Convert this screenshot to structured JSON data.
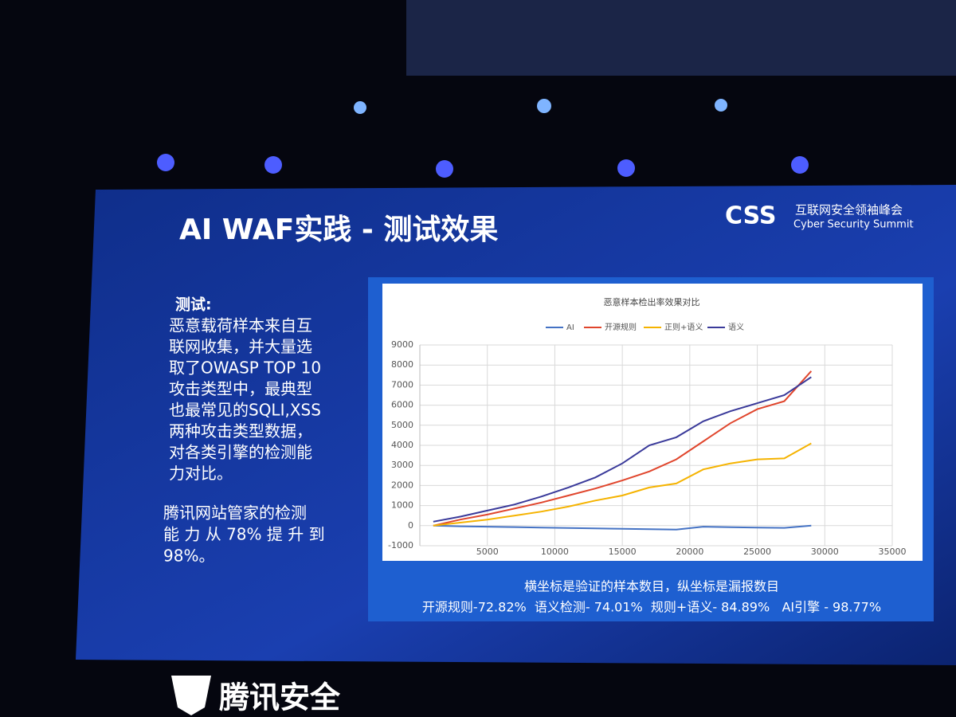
{
  "slide": {
    "title": "AI WAF实践 - 测试效果",
    "logo": "CSS",
    "summit_cn": "互联网安全领袖峰会",
    "summit_en": "Cyber Security Summit",
    "test_heading": "测试:",
    "test_lines": [
      "恶意载荷样本来自互",
      "联网收集，并大量选",
      "取了OWASP TOP 10",
      "攻击类型中，最典型",
      "也最常见的SQLI,XSS",
      "两种攻击类型数据，",
      "对各类引擎的检测能",
      "力对比。"
    ],
    "result_lines": [
      "腾讯网站管家的检测",
      "能 力 从 78% 提 升 到",
      "98%。"
    ],
    "caption": "横坐标是验证的样本数目，纵坐标是漏报数目",
    "rates": "开源规则-72.82%  语义检测- 74.01%  规则+语义- 84.89%   AI引擎 - 98.77%",
    "brand": "腾讯安全"
  },
  "chart_data": {
    "type": "line",
    "title": "恶意样本检出率效果对比",
    "x": [
      1000,
      3000,
      5000,
      7000,
      9000,
      11000,
      13000,
      15000,
      17000,
      19000,
      21000,
      23000,
      25000,
      27000,
      29000
    ],
    "series": [
      {
        "name": "AI",
        "color": "#4472c4",
        "values": [
          0,
          -30,
          -50,
          -70,
          -100,
          -120,
          -140,
          -160,
          -180,
          -200,
          -50,
          -80,
          -100,
          -110,
          0
        ]
      },
      {
        "name": "开源规则",
        "color": "#e0452c",
        "values": [
          0,
          300,
          550,
          850,
          1150,
          1500,
          1850,
          2250,
          2700,
          3300,
          4200,
          5100,
          5800,
          6200,
          7700
        ]
      },
      {
        "name": "正则+语义",
        "color": "#f5b300",
        "values": [
          0,
          150,
          300,
          500,
          700,
          950,
          1250,
          1500,
          1900,
          2100,
          2800,
          3100,
          3300,
          3350,
          4100
        ]
      },
      {
        "name": "语义",
        "color": "#3a3a9a",
        "values": [
          200,
          450,
          750,
          1050,
          1450,
          1900,
          2400,
          3100,
          4000,
          4400,
          5200,
          5700,
          6100,
          6500,
          7400
        ]
      }
    ],
    "xlim": [
      0,
      35000
    ],
    "xticks": [
      5000,
      10000,
      15000,
      20000,
      25000,
      30000,
      35000
    ],
    "ylim": [
      -1000,
      9000
    ],
    "yticks": [
      -1000,
      0,
      1000,
      2000,
      3000,
      4000,
      5000,
      6000,
      7000,
      8000,
      9000
    ],
    "grid": true
  }
}
